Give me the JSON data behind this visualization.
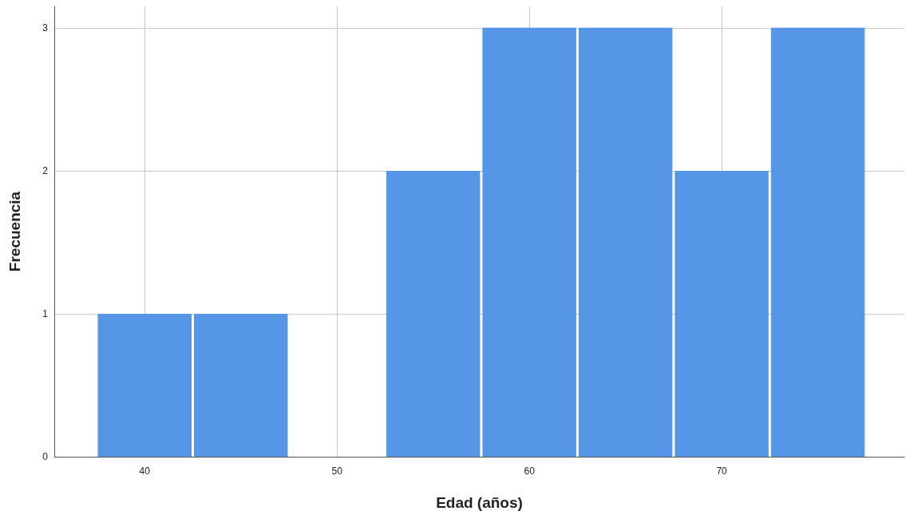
{
  "chart_data": {
    "type": "histogram",
    "xlabel": "Edad (años)",
    "ylabel": "Frecuencia",
    "bins": [
      37.5,
      42.5,
      47.5,
      52.5,
      57.5,
      62.5,
      67.5,
      72.5,
      77.5
    ],
    "values": [
      1,
      1,
      0,
      2,
      3,
      3,
      2,
      3
    ],
    "color": "#5596e6",
    "xlim": [
      35.3,
      79.5
    ],
    "xticks": [
      40,
      50,
      60,
      70
    ],
    "ylim": [
      0,
      3.15
    ],
    "yticks": [
      0,
      1,
      2,
      3
    ],
    "grid": true
  }
}
